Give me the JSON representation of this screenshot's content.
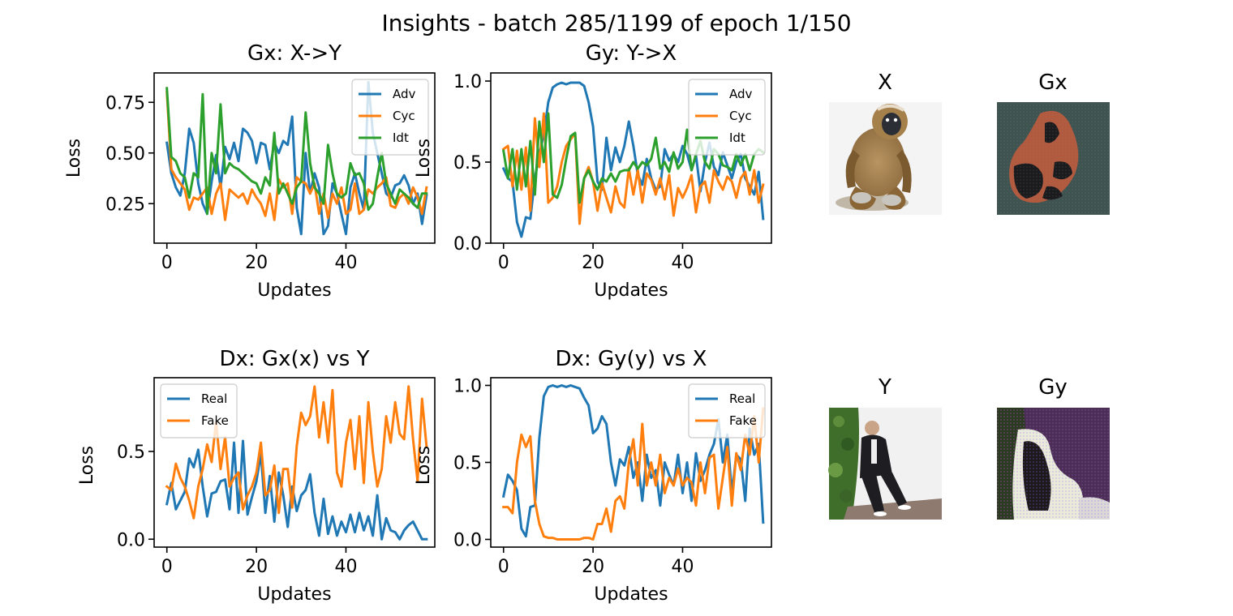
{
  "suptitle": "Insights - batch 285/1199 of epoch 1/150",
  "colors": {
    "blue": "#1f77b4",
    "orange": "#ff7f0e",
    "green": "#2ca02c"
  },
  "chart_data": [
    {
      "type": "line",
      "title": "Gx: X->Y",
      "xlabel": "Updates",
      "ylabel": "Loss",
      "xlim": [
        -2.85,
        59.85
      ],
      "ylim": [
        0.055,
        0.895
      ],
      "xticks": [
        0,
        20,
        40
      ],
      "yticks": [
        0.25,
        0.5,
        0.75
      ],
      "ytick_labels": [
        "0.25",
        "0.50",
        "0.75"
      ],
      "legend": "upper right",
      "series": [
        {
          "name": "Adv",
          "color": "#1f77b4",
          "values": [
            0.55,
            0.4,
            0.33,
            0.29,
            0.4,
            0.62,
            0.55,
            0.35,
            0.25,
            0.2,
            0.36,
            0.49,
            0.33,
            0.53,
            0.47,
            0.55,
            0.46,
            0.62,
            0.6,
            0.56,
            0.45,
            0.55,
            0.54,
            0.42,
            0.55,
            0.5,
            0.56,
            0.54,
            0.68,
            0.23,
            0.1,
            0.5,
            0.3,
            0.4,
            0.33,
            0.1,
            0.14,
            0.35,
            0.3,
            0.2,
            0.1,
            0.33,
            0.4,
            0.3,
            0.22,
            0.85,
            0.6,
            0.5,
            0.4,
            0.3,
            0.28,
            0.34,
            0.35,
            0.39,
            0.34,
            0.25,
            0.3,
            0.15,
            0.29
          ]
        },
        {
          "name": "Cyc",
          "color": "#ff7f0e",
          "values": [
            0.8,
            0.42,
            0.38,
            0.35,
            0.32,
            0.22,
            0.28,
            0.27,
            0.3,
            0.33,
            0.2,
            0.3,
            0.35,
            0.17,
            0.32,
            0.3,
            0.28,
            0.3,
            0.25,
            0.32,
            0.28,
            0.25,
            0.19,
            0.3,
            0.17,
            0.37,
            0.33,
            0.35,
            0.2,
            0.38,
            0.36,
            0.35,
            0.3,
            0.35,
            0.2,
            0.3,
            0.18,
            0.3,
            0.25,
            0.33,
            0.2,
            0.22,
            0.35,
            0.2,
            0.22,
            0.32,
            0.3,
            0.33,
            0.35,
            0.38,
            0.24,
            0.23,
            0.28,
            0.3,
            0.25,
            0.33,
            0.28,
            0.2,
            0.33
          ]
        },
        {
          "name": "Idt",
          "color": "#2ca02c",
          "values": [
            0.82,
            0.48,
            0.46,
            0.4,
            0.38,
            0.28,
            0.4,
            0.38,
            0.79,
            0.2,
            0.5,
            0.4,
            0.74,
            0.4,
            0.45,
            0.43,
            0.42,
            0.4,
            0.38,
            0.36,
            0.35,
            0.3,
            0.38,
            0.34,
            0.6,
            0.3,
            0.35,
            0.3,
            0.25,
            0.33,
            0.36,
            0.7,
            0.45,
            0.33,
            0.3,
            0.25,
            0.54,
            0.4,
            0.3,
            0.28,
            0.3,
            0.45,
            0.39,
            0.4,
            0.35,
            0.22,
            0.25,
            0.38,
            0.5,
            0.35,
            0.3,
            0.25,
            0.32,
            0.3,
            0.28,
            0.25,
            0.23,
            0.3,
            0.3
          ]
        }
      ]
    },
    {
      "type": "line",
      "title": "Gy: Y->X",
      "xlabel": "Updates",
      "ylabel": "Loss",
      "xlim": [
        -2.85,
        59.85
      ],
      "ylim": [
        0.0,
        1.05
      ],
      "xticks": [
        0,
        20,
        40
      ],
      "yticks": [
        0.0,
        0.5,
        1.0
      ],
      "ytick_labels": [
        "0.0",
        "0.5",
        "1.0"
      ],
      "legend": "upper right",
      "series": [
        {
          "name": "Adv",
          "color": "#1f77b4",
          "values": [
            0.46,
            0.4,
            0.38,
            0.13,
            0.04,
            0.16,
            0.15,
            0.4,
            0.55,
            0.67,
            0.87,
            0.96,
            0.98,
            0.99,
            0.98,
            0.99,
            0.99,
            0.99,
            0.97,
            0.87,
            0.72,
            0.38,
            0.33,
            0.65,
            0.45,
            0.59,
            0.5,
            0.6,
            0.75,
            0.6,
            0.42,
            0.36,
            0.52,
            0.4,
            0.33,
            0.35,
            0.58,
            0.51,
            0.55,
            0.5,
            0.6,
            0.55,
            0.45,
            0.54,
            0.32,
            0.5,
            0.62,
            0.47,
            0.42,
            0.56,
            0.48,
            0.4,
            0.5,
            0.55,
            0.4,
            0.35,
            0.3,
            0.44,
            0.15
          ]
        },
        {
          "name": "Cyc",
          "color": "#ff7f0e",
          "values": [
            0.58,
            0.6,
            0.35,
            0.57,
            0.33,
            0.59,
            0.2,
            0.77,
            0.47,
            0.8,
            0.25,
            0.28,
            0.35,
            0.5,
            0.6,
            0.64,
            0.68,
            0.12,
            0.4,
            0.47,
            0.38,
            0.2,
            0.37,
            0.28,
            0.19,
            0.35,
            0.25,
            0.22,
            0.46,
            0.3,
            0.45,
            0.25,
            0.43,
            0.39,
            0.3,
            0.4,
            0.27,
            0.42,
            0.17,
            0.34,
            0.28,
            0.34,
            0.42,
            0.19,
            0.35,
            0.38,
            0.25,
            0.45,
            0.38,
            0.33,
            0.41,
            0.38,
            0.28,
            0.4,
            0.44,
            0.3,
            0.45,
            0.25,
            0.36
          ]
        },
        {
          "name": "Idt",
          "color": "#2ca02c",
          "values": [
            0.57,
            0.4,
            0.58,
            0.33,
            0.58,
            0.35,
            0.63,
            0.3,
            0.75,
            0.5,
            0.8,
            0.3,
            0.28,
            0.36,
            0.52,
            0.66,
            0.68,
            0.25,
            0.4,
            0.45,
            0.38,
            0.33,
            0.4,
            0.38,
            0.43,
            0.38,
            0.44,
            0.45,
            0.45,
            0.5,
            0.46,
            0.5,
            0.48,
            0.52,
            0.65,
            0.46,
            0.5,
            0.44,
            0.56,
            0.46,
            0.5,
            0.7,
            0.45,
            0.55,
            0.63,
            0.5,
            0.46,
            0.58,
            0.55,
            0.48,
            0.47,
            0.45,
            0.55,
            0.48,
            0.55,
            0.45,
            0.55,
            0.58,
            0.56
          ]
        }
      ]
    },
    {
      "type": "line",
      "title": "Dx: Gx(x) vs Y",
      "xlabel": "Updates",
      "ylabel": "Loss",
      "xlim": [
        -2.85,
        59.85
      ],
      "ylim": [
        -0.045,
        0.92
      ],
      "xticks": [
        0,
        20,
        40
      ],
      "yticks": [
        0.0,
        0.5
      ],
      "ytick_labels": [
        "0.0",
        "0.5"
      ],
      "legend": "upper left",
      "series": [
        {
          "name": "Real",
          "color": "#1f77b4",
          "values": [
            0.2,
            0.32,
            0.17,
            0.22,
            0.27,
            0.46,
            0.41,
            0.51,
            0.3,
            0.13,
            0.26,
            0.27,
            0.33,
            0.34,
            0.17,
            0.55,
            0.15,
            0.56,
            0.14,
            0.24,
            0.33,
            0.49,
            0.15,
            0.36,
            0.1,
            0.38,
            0.25,
            0.07,
            0.3,
            0.16,
            0.25,
            0.28,
            0.37,
            0.15,
            0.02,
            0.23,
            0.03,
            0.13,
            0.02,
            0.1,
            0.04,
            0.14,
            0.04,
            0.15,
            0.05,
            0.13,
            0.02,
            0.25,
            0.0,
            0.12,
            0.05,
            0.04,
            0.0,
            0.05,
            0.08,
            0.1,
            0.05,
            0.0,
            0.0
          ]
        },
        {
          "name": "Fake",
          "color": "#ff7f0e",
          "values": [
            0.3,
            0.28,
            0.43,
            0.35,
            0.3,
            0.22,
            0.12,
            0.3,
            0.4,
            0.54,
            0.44,
            0.67,
            0.4,
            0.58,
            0.3,
            0.35,
            0.38,
            0.17,
            0.25,
            0.3,
            0.38,
            0.55,
            0.25,
            0.28,
            0.42,
            0.15,
            0.4,
            0.4,
            0.18,
            0.53,
            0.72,
            0.65,
            0.7,
            0.87,
            0.58,
            0.78,
            0.55,
            0.85,
            0.38,
            0.3,
            0.55,
            0.68,
            0.4,
            0.7,
            0.32,
            0.78,
            0.5,
            0.3,
            0.4,
            0.7,
            0.55,
            0.78,
            0.6,
            0.57,
            0.87,
            0.57,
            0.33,
            0.8,
            0.53
          ]
        }
      ]
    },
    {
      "type": "line",
      "title": "Dx: Gy(y) vs X",
      "xlabel": "Updates",
      "ylabel": "Loss",
      "xlim": [
        -2.85,
        59.85
      ],
      "ylim": [
        -0.05,
        1.05
      ],
      "xticks": [
        0,
        20,
        40
      ],
      "yticks": [
        0.0,
        0.5,
        1.0
      ],
      "ytick_labels": [
        "0.0",
        "0.5",
        "1.0"
      ],
      "legend": "upper right",
      "series": [
        {
          "name": "Real",
          "color": "#1f77b4",
          "values": [
            0.28,
            0.42,
            0.38,
            0.32,
            0.07,
            0.02,
            0.21,
            0.22,
            0.66,
            0.93,
            0.99,
            1.0,
            0.99,
            1.0,
            0.99,
            1.0,
            0.99,
            0.98,
            0.92,
            0.87,
            0.69,
            0.72,
            0.8,
            0.75,
            0.5,
            0.35,
            0.52,
            0.48,
            0.6,
            0.4,
            0.5,
            0.25,
            0.55,
            0.4,
            0.45,
            0.22,
            0.5,
            0.42,
            0.35,
            0.55,
            0.3,
            0.5,
            0.25,
            0.56,
            0.38,
            0.45,
            0.55,
            0.62,
            0.78,
            0.5,
            0.68,
            0.3,
            0.55,
            0.52,
            0.25,
            0.72,
            0.55,
            0.62,
            0.11
          ]
        },
        {
          "name": "Fake",
          "color": "#ff7f0e",
          "values": [
            0.21,
            0.21,
            0.17,
            0.5,
            0.68,
            0.6,
            0.67,
            0.25,
            0.1,
            0.02,
            0.01,
            0.01,
            0.0,
            0.0,
            0.0,
            0.0,
            0.0,
            0.0,
            0.01,
            0.01,
            0.0,
            0.1,
            0.1,
            0.2,
            0.05,
            0.25,
            0.28,
            0.2,
            0.5,
            0.65,
            0.35,
            0.75,
            0.35,
            0.5,
            0.35,
            0.55,
            0.3,
            0.4,
            0.35,
            0.46,
            0.35,
            0.4,
            0.37,
            0.22,
            0.5,
            0.3,
            0.53,
            0.55,
            0.2,
            0.4,
            0.6,
            0.22,
            0.56,
            0.45,
            0.68,
            0.55,
            0.8,
            0.5,
            0.85
          ]
        }
      ]
    }
  ],
  "images": [
    {
      "title": "X",
      "subject": "stuffed-gibbon-toy"
    },
    {
      "title": "Gx",
      "subject": "generated-dark-blob"
    },
    {
      "title": "Y",
      "subject": "man-in-suit-photo"
    },
    {
      "title": "Gy",
      "subject": "generated-purple-blob"
    }
  ]
}
